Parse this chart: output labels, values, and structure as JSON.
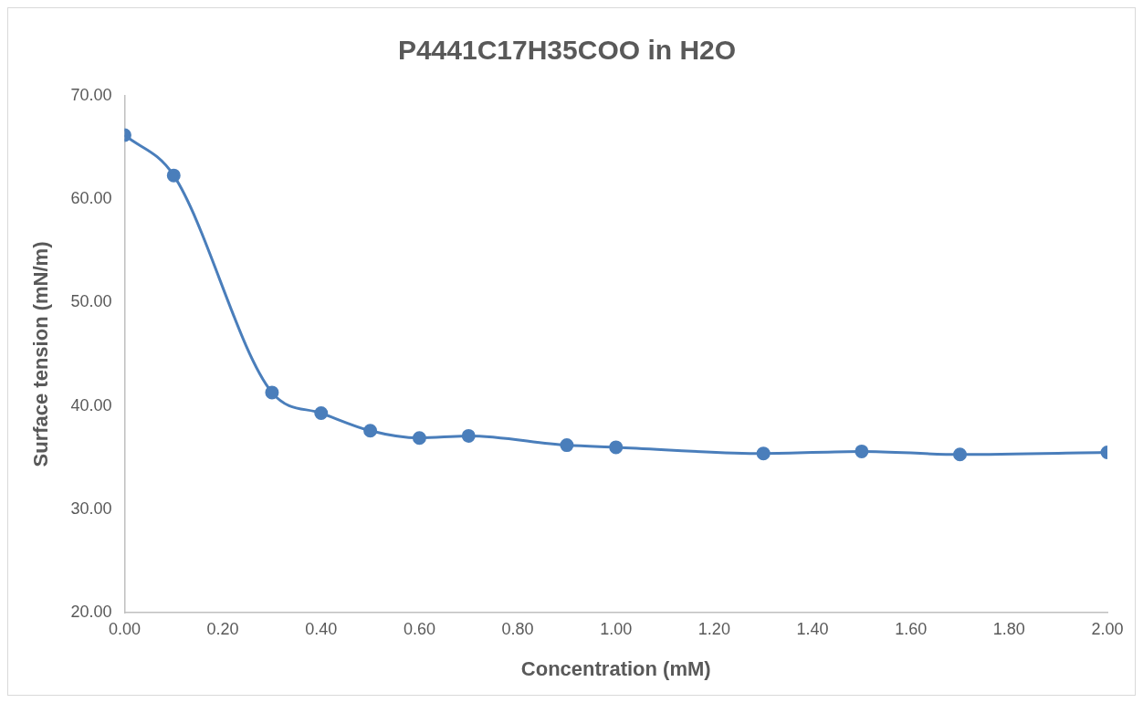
{
  "chart_data": {
    "type": "line",
    "title": "P4441C17H35COO in H2O",
    "xlabel": "Concentration (mM)",
    "ylabel": "Surface tension (mN/m)",
    "x": [
      0,
      0.1,
      0.3,
      0.4,
      0.5,
      0.6,
      0.7,
      0.9,
      1.0,
      1.3,
      1.5,
      1.7,
      2.0
    ],
    "series": [
      {
        "color": "#4a7ebb",
        "values": [
          66.2,
          62.3,
          41.3,
          39.3,
          37.6,
          36.9,
          37.1,
          36.2,
          36.0,
          35.4,
          35.6,
          35.3,
          35.5
        ]
      }
    ],
    "xlim": [
      0,
      2
    ],
    "xticks": [
      {
        "value": 0,
        "label": "0.00"
      },
      {
        "value": 0.2,
        "label": "0.20"
      },
      {
        "value": 0.4,
        "label": "0.40"
      },
      {
        "value": 0.6,
        "label": "0.60"
      },
      {
        "value": 0.8,
        "label": "0.80"
      },
      {
        "value": 1,
        "label": "1.00"
      },
      {
        "value": 1.2,
        "label": "1.20"
      },
      {
        "value": 1.4,
        "label": "1.40"
      },
      {
        "value": 1.6,
        "label": "1.60"
      },
      {
        "value": 1.8,
        "label": "1.80"
      },
      {
        "value": 2,
        "label": "2.00"
      }
    ],
    "ylim": [
      20,
      70
    ],
    "yticks": [
      {
        "value": 20,
        "label": "20.00"
      },
      {
        "value": 30,
        "label": "30.00"
      },
      {
        "value": 40,
        "label": "40.00"
      },
      {
        "value": 50,
        "label": "50.00"
      },
      {
        "value": 60,
        "label": "60.00"
      },
      {
        "value": 70,
        "label": "70.00"
      }
    ],
    "grid": false,
    "legend": false,
    "marker": "circle",
    "line_style": "solid"
  }
}
